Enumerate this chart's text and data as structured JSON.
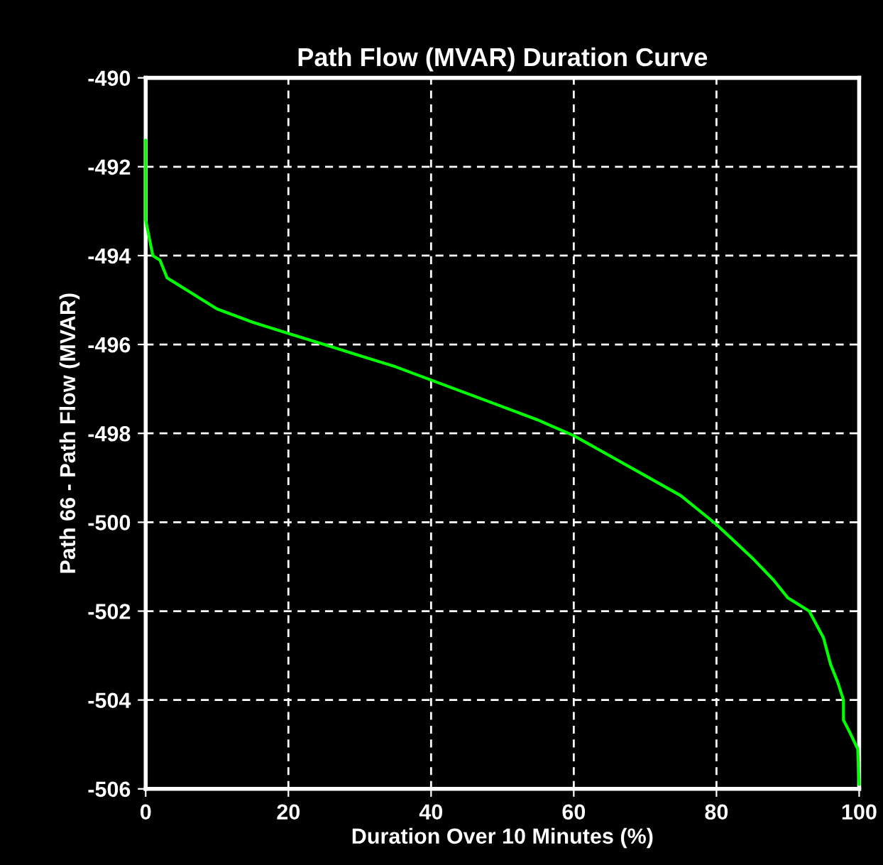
{
  "chart_data": {
    "type": "line",
    "title": "Path Flow (MVAR) Duration Curve",
    "xlabel": "Duration Over 10 Minutes (%)",
    "ylabel": "Path 66 - Path Flow (MVAR)",
    "series": [
      {
        "color": "#00ff00",
        "x": [
          0,
          0,
          0.5,
          1,
          2,
          3,
          5,
          8,
          10,
          15,
          20,
          25,
          30,
          35,
          40,
          45,
          50,
          55,
          60,
          65,
          70,
          75,
          80,
          85,
          88,
          90,
          93,
          95,
          96,
          97,
          97.8,
          97.8,
          98.6,
          99.8,
          100
        ],
        "values": [
          -491.4,
          -493.2,
          -493.6,
          -494.0,
          -494.1,
          -494.5,
          -494.7,
          -495.0,
          -495.2,
          -495.5,
          -495.75,
          -496.0,
          -496.25,
          -496.5,
          -496.8,
          -497.1,
          -497.4,
          -497.7,
          -498.05,
          -498.5,
          -498.95,
          -499.4,
          -500.05,
          -500.8,
          -501.3,
          -501.7,
          -502.0,
          -502.6,
          -503.2,
          -503.6,
          -504.0,
          -504.45,
          -504.7,
          -505.1,
          -505.9
        ]
      }
    ],
    "xlim": [
      0,
      100
    ],
    "xticks": [
      0,
      20,
      40,
      60,
      80,
      100
    ],
    "ylim": [
      -506,
      -490
    ],
    "yticks": [
      -506,
      -504,
      -502,
      -500,
      -498,
      -496,
      -494,
      -492,
      -490
    ],
    "grid": true,
    "marker": "none",
    "line_style": "solid"
  }
}
